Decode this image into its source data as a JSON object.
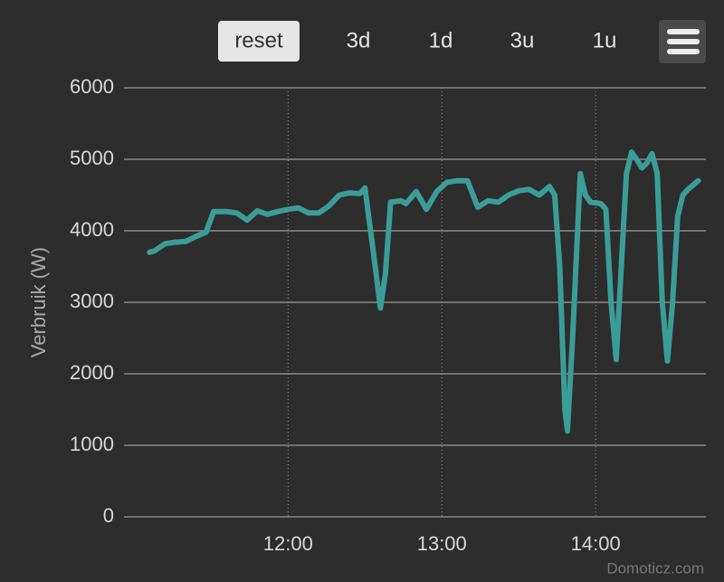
{
  "toolbar": {
    "buttons": [
      "reset",
      "3d",
      "1d",
      "3u",
      "1u"
    ]
  },
  "watermark": "Domoticz.com",
  "chart_data": {
    "type": "line",
    "y_label": "Verbruik (W)",
    "x": [
      "11:06",
      "11:08",
      "11:12",
      "11:16",
      "11:20",
      "11:24",
      "11:28",
      "11:31",
      "11:36",
      "11:40",
      "11:44",
      "11:48",
      "11:52",
      "11:56",
      "12:00",
      "12:04",
      "12:08",
      "12:12",
      "12:16",
      "12:20",
      "12:24",
      "12:28",
      "12:30",
      "12:34",
      "12:36",
      "12:38",
      "12:40",
      "12:44",
      "12:46",
      "12:50",
      "12:54",
      "12:58",
      "13:02",
      "13:06",
      "13:10",
      "13:14",
      "13:18",
      "13:22",
      "13:26",
      "13:30",
      "13:34",
      "13:38",
      "13:42",
      "13:44",
      "13:46",
      "13:48",
      "13:49",
      "13:51",
      "13:54",
      "13:56",
      "13:58",
      "14:02",
      "14:04",
      "14:06",
      "14:08",
      "14:10",
      "14:12",
      "14:14",
      "14:16",
      "14:18",
      "14:20",
      "14:22",
      "14:24",
      "14:26",
      "14:28",
      "14:30",
      "14:32",
      "14:34",
      "14:36",
      "14:40"
    ],
    "series": [
      {
        "name": "Verbruik",
        "color": "#3b9d97",
        "values": [
          3700,
          3720,
          3820,
          3840,
          3850,
          3920,
          3980,
          4270,
          4270,
          4250,
          4150,
          4280,
          4230,
          4270,
          4300,
          4320,
          4250,
          4250,
          4350,
          4500,
          4530,
          4520,
          4600,
          3500,
          2920,
          3400,
          4400,
          4420,
          4380,
          4550,
          4300,
          4550,
          4680,
          4700,
          4700,
          4330,
          4420,
          4400,
          4500,
          4560,
          4580,
          4500,
          4620,
          4500,
          3500,
          1500,
          1200,
          2500,
          4800,
          4500,
          4400,
          4380,
          4300,
          3000,
          2200,
          3500,
          4800,
          5100,
          5000,
          4880,
          4950,
          5080,
          4800,
          3000,
          2180,
          3000,
          4200,
          4500,
          4580,
          4700
        ]
      }
    ],
    "xlim": [
      "10:56",
      "14:43"
    ],
    "xticks": [
      "12:00",
      "13:00",
      "14:00"
    ],
    "ylim": [
      0,
      6000
    ],
    "yticks": [
      0,
      1000,
      2000,
      3000,
      4000,
      5000,
      6000
    ],
    "grid": true
  }
}
